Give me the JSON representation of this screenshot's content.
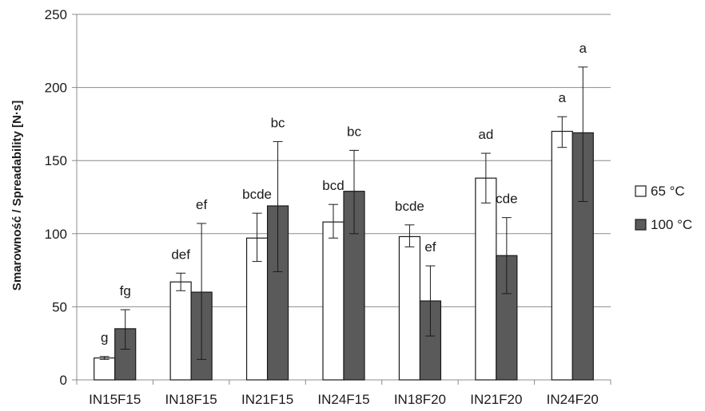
{
  "chart_data": {
    "type": "bar",
    "ylabel": "Smarowność / Spreadability [N·s]",
    "xlabel": "",
    "ylim": [
      0,
      250
    ],
    "yticks": [
      "0",
      "50",
      "100",
      "150",
      "200",
      "250"
    ],
    "grid": true,
    "legend_position": "right",
    "categories": [
      "IN15F15",
      "IN18F15",
      "IN21F15",
      "IN24F15",
      "IN18F20",
      "IN21F20",
      "IN24F20"
    ],
    "series": [
      {
        "name": "65 °C",
        "color": "#ffffff",
        "values": [
          15,
          67,
          97,
          108,
          98,
          138,
          170
        ],
        "err_low": [
          14,
          61,
          81,
          97,
          91,
          121,
          159
        ],
        "err_high": [
          16,
          73,
          114,
          120,
          106,
          155,
          180
        ],
        "letters": [
          "g",
          "def",
          "bcde",
          "bcd",
          "bcde",
          "ad",
          "a"
        ]
      },
      {
        "name": "100 °C",
        "color": "#5a5a5a",
        "values": [
          35,
          60,
          119,
          129,
          54,
          85,
          169
        ],
        "err_low": [
          21,
          14,
          74,
          100,
          30,
          59,
          122
        ],
        "err_high": [
          48,
          107,
          163,
          157,
          78,
          111,
          214
        ],
        "letters": [
          "fg",
          "ef",
          "bc",
          "bc",
          "ef",
          "cde",
          "a"
        ]
      }
    ]
  }
}
